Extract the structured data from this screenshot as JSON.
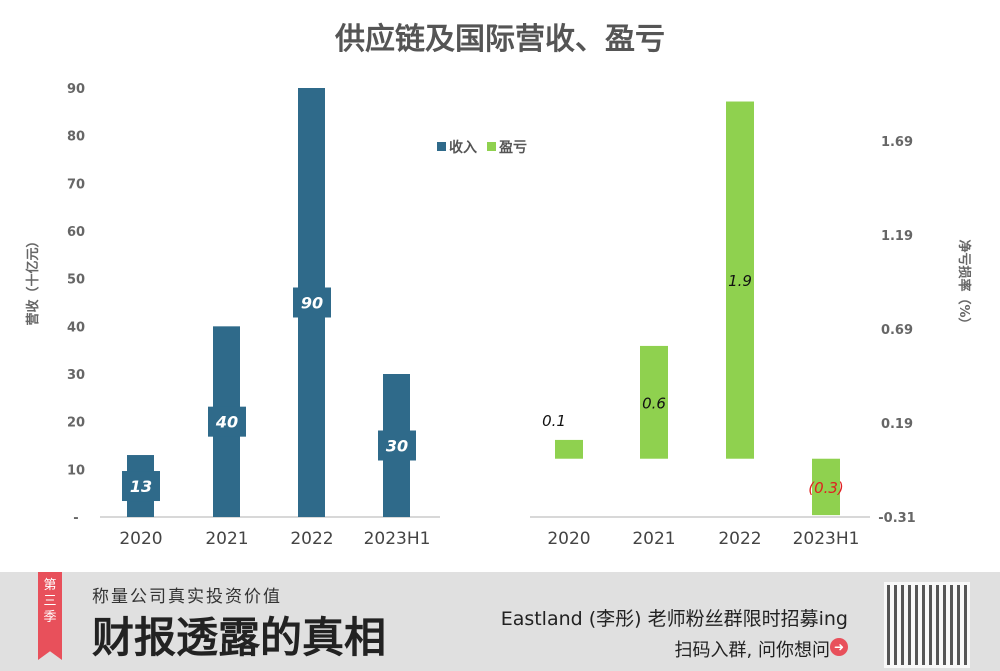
{
  "title": "供应链及国际营收、盈亏",
  "chart_data": [
    {
      "type": "bar",
      "categories": [
        "2020",
        "2021",
        "2022",
        "2023H1"
      ],
      "series": [
        {
          "name": "收入",
          "values": [
            13,
            40,
            90,
            30
          ],
          "color": "#2f6a8a"
        }
      ],
      "ylabel": "营收（十亿元）",
      "ylim": [
        0,
        90
      ],
      "yticks": [
        "-",
        "10",
        "20",
        "30",
        "40",
        "50",
        "60",
        "70",
        "80",
        "90"
      ],
      "data_labels": [
        "13",
        "40",
        "90",
        "30"
      ]
    },
    {
      "type": "bar",
      "categories": [
        "2020",
        "2021",
        "2022",
        "2023H1"
      ],
      "series": [
        {
          "name": "盈亏",
          "values": [
            0.1,
            0.6,
            1.9,
            -0.3
          ],
          "color": "#8fd14f"
        }
      ],
      "ylabel": "净亏损率（%）",
      "ylim": [
        -0.31,
        1.69
      ],
      "yticks": [
        "-0.31",
        "0.19",
        "0.69",
        "1.19",
        "1.69"
      ],
      "data_labels": [
        "0.1",
        "0.6",
        "1.9",
        "(0.3)"
      ],
      "negative_label_color": "#e02020"
    }
  ],
  "legend": [
    "收入",
    "盈亏"
  ],
  "banner": {
    "ribbon": "第三季",
    "subtitle": "称量公司真实投资价值",
    "headline": "财报透露的真相",
    "promo": "Eastland (李彤) 老师粉丝群限时招募ing",
    "cta": "扫码入群, 问你想问",
    "arrow_icon": "➜"
  }
}
